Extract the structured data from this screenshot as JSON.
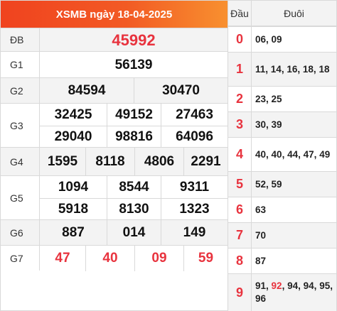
{
  "title": "XSMB ngày 18-04-2025",
  "prizes": [
    {
      "label": "ĐB",
      "rows": [
        [
          "45992"
        ]
      ],
      "red": true
    },
    {
      "label": "G1",
      "rows": [
        [
          "56139"
        ]
      ]
    },
    {
      "label": "G2",
      "rows": [
        [
          "84594",
          "30470"
        ]
      ]
    },
    {
      "label": "G3",
      "rows": [
        [
          "32425",
          "49152",
          "27463"
        ],
        [
          "29040",
          "98816",
          "64096"
        ]
      ]
    },
    {
      "label": "G4",
      "rows": [
        [
          "1595",
          "8118",
          "4806",
          "2291"
        ]
      ]
    },
    {
      "label": "G5",
      "rows": [
        [
          "1094",
          "8544",
          "9311"
        ],
        [
          "5918",
          "8130",
          "1323"
        ]
      ]
    },
    {
      "label": "G6",
      "rows": [
        [
          "887",
          "014",
          "149"
        ]
      ]
    },
    {
      "label": "G7",
      "rows": [
        [
          "47",
          "40",
          "09",
          "59"
        ]
      ],
      "red": true
    }
  ],
  "loto": {
    "head_label": "Đầu",
    "tail_label": "Đuôi",
    "rows": [
      {
        "head": "0",
        "tails": [
          "06",
          "09"
        ]
      },
      {
        "head": "1",
        "tails": [
          "11",
          "14",
          "16",
          "18",
          "18"
        ]
      },
      {
        "head": "2",
        "tails": [
          "23",
          "25"
        ]
      },
      {
        "head": "3",
        "tails": [
          "30",
          "39"
        ]
      },
      {
        "head": "4",
        "tails": [
          "40",
          "40",
          "44",
          "47",
          "49"
        ]
      },
      {
        "head": "5",
        "tails": [
          "52",
          "59"
        ]
      },
      {
        "head": "6",
        "tails": [
          "63"
        ]
      },
      {
        "head": "7",
        "tails": [
          "70"
        ]
      },
      {
        "head": "8",
        "tails": [
          "87"
        ]
      },
      {
        "head": "9",
        "tails": [
          "91",
          "92",
          "94",
          "94",
          "95",
          "96"
        ],
        "highlight": [
          "92"
        ]
      }
    ]
  },
  "colors": {
    "header_gradient_start": "#f0431f",
    "header_gradient_end": "#f8902f",
    "accent_red": "#e8333e",
    "alt_row": "#f3f3f3",
    "border": "#d9d9d9"
  }
}
